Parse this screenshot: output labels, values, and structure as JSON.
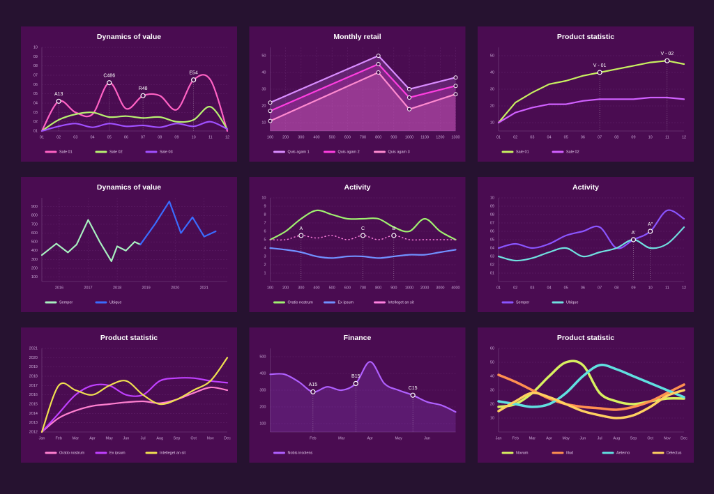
{
  "chart_data": [
    {
      "type": "line",
      "title": "Dynamics of value",
      "smooth": true,
      "grid": true,
      "categories": [
        "01",
        "02",
        "03",
        "04",
        "05",
        "06",
        "07",
        "08",
        "09",
        "10",
        "11",
        "12"
      ],
      "ylim": [
        1,
        10
      ],
      "yticks": [
        {
          "value": 1,
          "label": "01"
        },
        {
          "value": 2,
          "label": "02"
        },
        {
          "value": 3,
          "label": "03"
        },
        {
          "value": 4,
          "label": "04"
        },
        {
          "value": 5,
          "label": "05"
        },
        {
          "value": 6,
          "label": "06"
        },
        {
          "value": 7,
          "label": "07"
        },
        {
          "value": 8,
          "label": "08"
        },
        {
          "value": 9,
          "label": "09"
        },
        {
          "value": 10,
          "label": "10"
        }
      ],
      "series": [
        {
          "name": "Sale 01",
          "color": "#ff62c4",
          "values": [
            1,
            4.2,
            3,
            2.8,
            6.2,
            3.4,
            4.8,
            4.8,
            3.3,
            6.5,
            6.5,
            1
          ]
        },
        {
          "name": "Sale 02",
          "color": "#b8f070",
          "values": [
            1,
            2.2,
            2.8,
            3,
            2.5,
            2.6,
            2.4,
            2.5,
            2,
            2.2,
            3.6,
            1.2
          ]
        },
        {
          "name": "Sale 03",
          "color": "#a050ff",
          "values": [
            1,
            1.5,
            1.8,
            1.4,
            1.8,
            1.5,
            1.6,
            1.4,
            1.8,
            1.5,
            2,
            1.2
          ]
        }
      ],
      "annotations": [
        {
          "text": "A13",
          "i": 1
        },
        {
          "text": "C486",
          "i": 4
        },
        {
          "text": "R48",
          "i": 6
        },
        {
          "text": "E54",
          "i": 9
        }
      ]
    },
    {
      "type": "line",
      "title": "Monthly retail",
      "grid": true,
      "area": true,
      "markers": true,
      "x": [
        100,
        800,
        1000,
        1300
      ],
      "xlim": [
        100,
        1300
      ],
      "xticks": [
        100,
        200,
        300,
        400,
        500,
        600,
        700,
        800,
        900,
        1000,
        1100,
        1200,
        1300
      ],
      "ylim": [
        5,
        55
      ],
      "yticks": [
        10,
        20,
        30,
        40,
        50
      ],
      "series": [
        {
          "name": "Quis agam 1",
          "color": "#d98cff",
          "values": [
            22,
            50,
            30,
            37
          ]
        },
        {
          "name": "Quis agam 2",
          "color": "#ff3ee0",
          "values": [
            17,
            45,
            25,
            32
          ]
        },
        {
          "name": "Quis agam 3",
          "color": "#ff8ad0",
          "values": [
            11,
            40,
            18,
            27
          ]
        }
      ]
    },
    {
      "type": "line",
      "title": "Product statistic",
      "grid": true,
      "categories": [
        "01",
        "02",
        "03",
        "04",
        "05",
        "06",
        "07",
        "08",
        "09",
        "10",
        "11",
        "12"
      ],
      "ylim": [
        5,
        55
      ],
      "yticks": [
        10,
        20,
        30,
        40,
        50
      ],
      "series": [
        {
          "name": "Sale 01",
          "color": "#c8f060",
          "values": [
            10,
            22,
            28,
            33,
            35,
            38,
            40,
            42,
            44,
            46,
            47,
            45
          ]
        },
        {
          "name": "Sale 02",
          "color": "#d060ff",
          "values": [
            10,
            16,
            19,
            21,
            21,
            23,
            24,
            24,
            24,
            25,
            25,
            24
          ]
        }
      ],
      "annotations": [
        {
          "text": "V - 01",
          "i": 6
        },
        {
          "text": "V - 02",
          "i": 10
        }
      ]
    },
    {
      "type": "line",
      "title": "Dynamics of value",
      "grid": true,
      "xlim": [
        2015.4,
        2021.8
      ],
      "xticks": [
        2016,
        2017,
        2018,
        2019,
        2020,
        2021
      ],
      "ylim": [
        50,
        1000
      ],
      "yticks": [
        100,
        200,
        300,
        400,
        500,
        600,
        700,
        800,
        900
      ],
      "series": [
        {
          "name": "Semper",
          "color": "#a8f0c0",
          "x": [
            2015.4,
            2015.9,
            2016.3,
            2016.6,
            2017.0,
            2017.4,
            2017.8,
            2018.0,
            2018.3,
            2018.6,
            2018.8
          ],
          "values": [
            350,
            480,
            380,
            470,
            750,
            500,
            280,
            450,
            400,
            500,
            470
          ]
        },
        {
          "name": "Ubique",
          "color": "#3a6cff",
          "x": [
            2018.8,
            2019.3,
            2019.8,
            2020.2,
            2020.6,
            2021.0,
            2021.4
          ],
          "values": [
            470,
            700,
            960,
            600,
            780,
            560,
            620
          ]
        }
      ]
    },
    {
      "type": "line",
      "title": "Activity",
      "smooth": true,
      "grid": true,
      "categories": [
        "100",
        "200",
        "300",
        "400",
        "500",
        "600",
        "700",
        "800",
        "900",
        "1000",
        "2000",
        "3000",
        "4000"
      ],
      "ylim": [
        0,
        10
      ],
      "yticks": [
        1,
        2,
        3,
        4,
        5,
        6,
        7,
        8,
        9,
        10
      ],
      "series": [
        {
          "name": "Oratio nostrum",
          "color": "#a0f070",
          "values": [
            5,
            6,
            7.5,
            8.5,
            8,
            7.5,
            7.5,
            7.5,
            6.5,
            6,
            7.5,
            6,
            5
          ]
        },
        {
          "name": "Ex ipsum",
          "color": "#7090ff",
          "values": [
            4,
            3.8,
            3.5,
            3,
            2.8,
            3,
            3,
            2.8,
            3,
            3.2,
            3.2,
            3.5,
            3.8
          ]
        },
        {
          "name": "Intelleget an sit",
          "color": "#ff80e0",
          "dash": true,
          "values": [
            5,
            5,
            5.5,
            5.2,
            5.5,
            5,
            5.5,
            5,
            5.5,
            5,
            5,
            5,
            5
          ]
        }
      ],
      "annotations": [
        {
          "text": "A",
          "i": 2,
          "series": 2
        },
        {
          "text": "B",
          "i": 8,
          "series": 2
        },
        {
          "text": "C",
          "i": 6,
          "series": 2
        }
      ]
    },
    {
      "type": "line",
      "title": "Activity",
      "smooth": true,
      "grid": true,
      "categories": [
        "01",
        "02",
        "03",
        "04",
        "05",
        "06",
        "07",
        "08",
        "09",
        "10",
        "11",
        "12"
      ],
      "ylim": [
        0,
        10
      ],
      "yticks": [
        {
          "value": 1,
          "label": "01"
        },
        {
          "value": 2,
          "label": "02"
        },
        {
          "value": 3,
          "label": "03"
        },
        {
          "value": 4,
          "label": "04"
        },
        {
          "value": 5,
          "label": "05"
        },
        {
          "value": 6,
          "label": "06"
        },
        {
          "value": 7,
          "label": "07"
        },
        {
          "value": 8,
          "label": "08"
        },
        {
          "value": 9,
          "label": "09"
        },
        {
          "value": 10,
          "label": "10"
        }
      ],
      "series": [
        {
          "name": "Semper",
          "color": "#8a55ff",
          "values": [
            4,
            4.5,
            4,
            4.5,
            5.5,
            6,
            6.5,
            4,
            5,
            6,
            8.5,
            7.5
          ]
        },
        {
          "name": "Ubique",
          "color": "#70e0e0",
          "values": [
            3,
            2.5,
            2.8,
            3.5,
            4,
            3,
            3.5,
            4,
            5,
            4,
            4.5,
            6.5
          ]
        }
      ],
      "annotations": [
        {
          "text": "A'",
          "i": 8,
          "series": 1
        },
        {
          "text": "A\"",
          "i": 9
        }
      ]
    },
    {
      "type": "line",
      "title": "Product statistic",
      "smooth": true,
      "grid": true,
      "categories": [
        "Jan",
        "Feb",
        "Mar",
        "Apr",
        "May",
        "Jun",
        "Jul",
        "Aug",
        "Sep",
        "Oct",
        "Nov",
        "Dec"
      ],
      "ylim": [
        2012,
        2021
      ],
      "yticks": [
        2012,
        2013,
        2014,
        2015,
        2016,
        2017,
        2018,
        2019,
        2020,
        2021
      ],
      "series": [
        {
          "name": "Oratio nostrum",
          "color": "#ff80d0",
          "values": [
            2012,
            2013.5,
            2014.3,
            2014.8,
            2015,
            2015.2,
            2015.3,
            2015.1,
            2015.5,
            2016.2,
            2016.8,
            2016.5
          ]
        },
        {
          "name": "Ex ipsum",
          "color": "#c040ff",
          "values": [
            2012,
            2014,
            2016,
            2017,
            2017,
            2016,
            2016,
            2017.5,
            2017.8,
            2017.8,
            2017.5,
            2017.3
          ]
        },
        {
          "name": "Intelleget an sit",
          "color": "#f0e050",
          "values": [
            2012,
            2017,
            2016.5,
            2016,
            2017,
            2017.5,
            2016,
            2015,
            2015.5,
            2016.5,
            2017.5,
            2020
          ]
        }
      ]
    },
    {
      "type": "line",
      "title": "Finance",
      "smooth": true,
      "grid": true,
      "area": true,
      "categories": [
        null,
        null,
        null,
        "Feb",
        null,
        "Mar",
        null,
        "Apr",
        null,
        "May",
        null,
        "Jun",
        null,
        null
      ],
      "ylim": [
        50,
        550
      ],
      "yticks": [
        100,
        200,
        300,
        400,
        500
      ],
      "series": [
        {
          "name": "Nobis insolens",
          "color": "#b060ff",
          "values": [
            395,
            395,
            350,
            290,
            320,
            300,
            340,
            470,
            340,
            300,
            270,
            230,
            210,
            170
          ]
        }
      ],
      "annotations": [
        {
          "text": "A15",
          "i": 3
        },
        {
          "text": "B15",
          "i": 6
        },
        {
          "text": "C15",
          "i": 10
        }
      ]
    },
    {
      "type": "line",
      "title": "Product statistic",
      "smooth": true,
      "grid": true,
      "thick": true,
      "categories": [
        "Jan",
        "Feb",
        "Mar",
        "Apr",
        "May",
        "Jun",
        "Jul",
        "Aug",
        "Sep",
        "Oct",
        "Nov",
        "Dec"
      ],
      "ylim": [
        0,
        60
      ],
      "yticks": [
        10,
        20,
        30,
        40,
        50,
        60
      ],
      "series": [
        {
          "name": "Novum",
          "color": "#d8f060",
          "values": [
            18,
            20,
            28,
            40,
            50,
            48,
            28,
            22,
            20,
            22,
            24,
            24
          ]
        },
        {
          "name": "Illud",
          "color": "#ff9050",
          "values": [
            41,
            36,
            30,
            24,
            20,
            18,
            17,
            16,
            18,
            22,
            28,
            34
          ]
        },
        {
          "name": "Aeterno",
          "color": "#60e0e0",
          "values": [
            22,
            20,
            18,
            20,
            28,
            40,
            48,
            45,
            40,
            35,
            30,
            25
          ]
        },
        {
          "name": "Delectus",
          "color": "#ffd060",
          "values": [
            15,
            22,
            28,
            25,
            20,
            15,
            12,
            10,
            12,
            18,
            26,
            30
          ]
        }
      ]
    }
  ]
}
